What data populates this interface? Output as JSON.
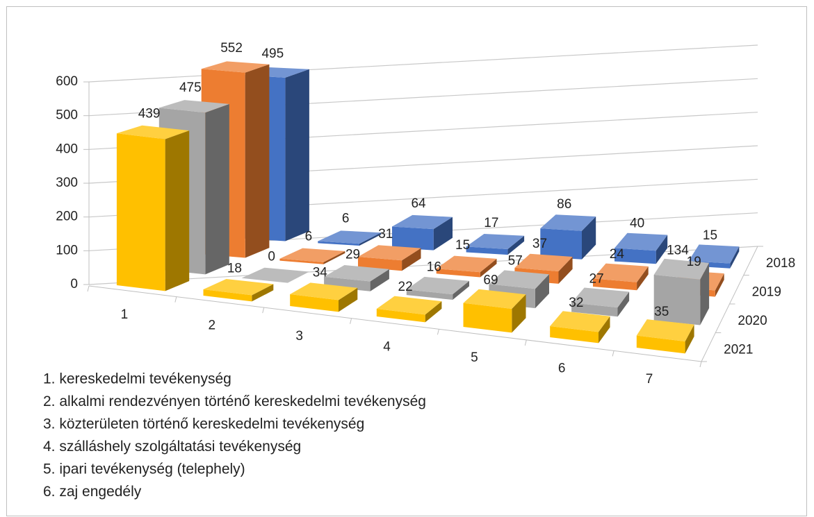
{
  "chart_data": {
    "type": "bar3d",
    "categories": [
      "1",
      "2",
      "3",
      "4",
      "5",
      "6",
      "7"
    ],
    "series": [
      {
        "name": "2018",
        "color": "#4472c4",
        "values": [
          495,
          6,
          64,
          17,
          86,
          40,
          15
        ]
      },
      {
        "name": "2019",
        "color": "#ed7d31",
        "values": [
          552,
          6,
          31,
          15,
          37,
          24,
          19
        ]
      },
      {
        "name": "2020",
        "color": "#a5a5a5",
        "values": [
          475,
          0,
          29,
          16,
          57,
          27,
          134
        ]
      },
      {
        "name": "2021",
        "color": "#ffc000",
        "values": [
          439,
          18,
          34,
          22,
          69,
          32,
          35
        ]
      }
    ],
    "ylim": [
      0,
      600
    ],
    "yticks": [
      0,
      100,
      200,
      300,
      400,
      500,
      600
    ],
    "grid": true,
    "category_notes": [
      "1. kereskedelmi tevékenység",
      "2. alkalmi rendezvényen történő kereskedelmi tevékenység",
      "3. közterületen történő kereskedelmi tevékenység",
      "4. szálláshely szolgáltatási tevékenység",
      "5. ipari tevékenység (telephely)",
      "6. zaj engedély"
    ]
  }
}
